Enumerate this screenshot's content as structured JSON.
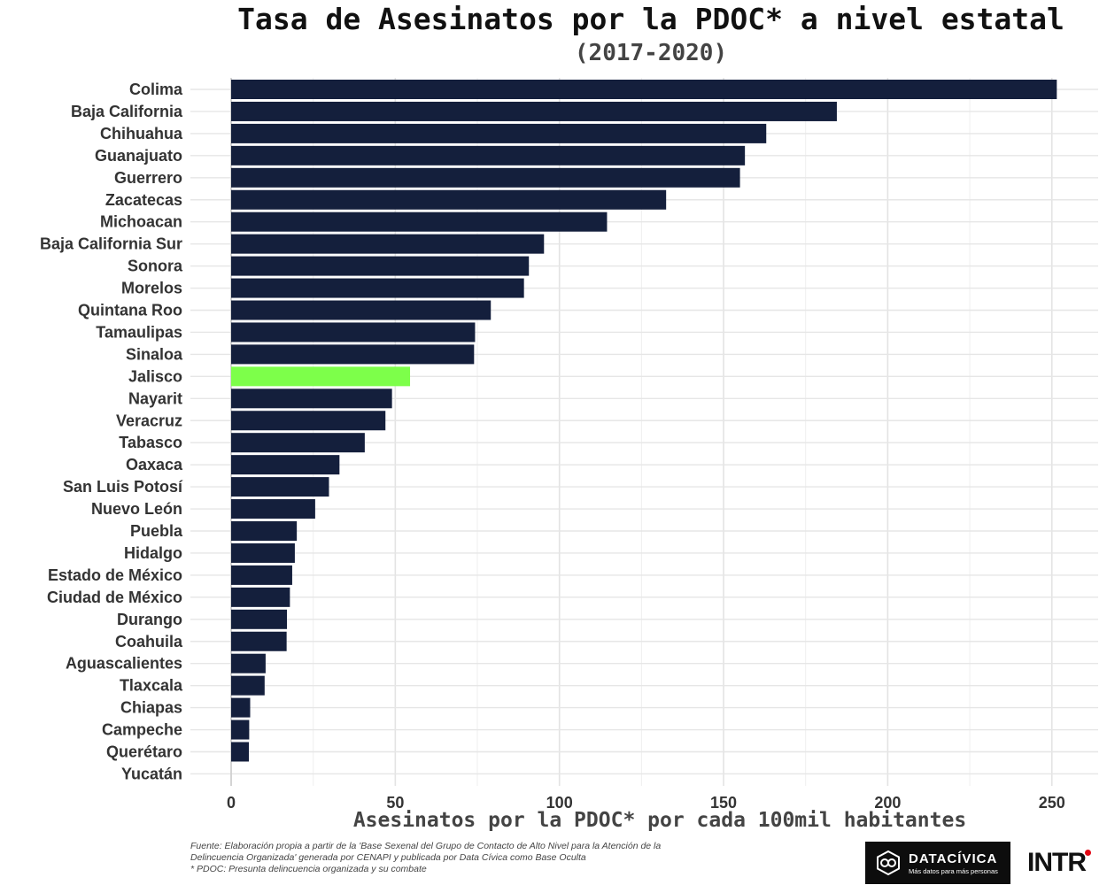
{
  "chart_data": {
    "type": "bar",
    "orientation": "horizontal",
    "title": "Tasa de Asesinatos por la PDOC* a nivel estatal",
    "subtitle": "(2017-2020)",
    "xlabel": "Asesinatos por la PDOC* por cada 100mil habitantes",
    "ylabel": "",
    "xlim": [
      0,
      260
    ],
    "xticks": [
      0,
      50,
      100,
      150,
      200,
      250
    ],
    "grid": true,
    "bar_color": "#141f3c",
    "highlight_color": "#7dff4a",
    "highlight_category": "Jalisco",
    "categories": [
      "Colima",
      "Baja California",
      "Chihuahua",
      "Guanajuato",
      "Guerrero",
      "Zacatecas",
      "Michoacan",
      "Baja California Sur",
      "Sonora",
      "Morelos",
      "Quintana Roo",
      "Tamaulipas",
      "Sinaloa",
      "Jalisco",
      "Nayarit",
      "Veracruz",
      "Tabasco",
      "Oaxaca",
      "San Luis Potosí",
      "Nuevo León",
      "Puebla",
      "Hidalgo",
      "Estado de México",
      "Ciudad de México",
      "Durango",
      "Coahuila",
      "Aguascalientes",
      "Tlaxcala",
      "Chiapas",
      "Campeche",
      "Querétaro",
      "Yucatán"
    ],
    "values": [
      251.5,
      184.5,
      163,
      156.5,
      155,
      132.5,
      114.5,
      95.3,
      90.7,
      89.2,
      79.1,
      74.3,
      74,
      54.5,
      49,
      47,
      40.7,
      33,
      29.8,
      25.6,
      20,
      19.4,
      18.6,
      17.9,
      17,
      16.9,
      10.5,
      10.2,
      5.8,
      5.5,
      5.4,
      0
    ]
  },
  "footer": {
    "source_lines": [
      "Fuente: Elaboración propia a partir de la 'Base Sexenal del Grupo de Contacto de Alto Nivel para la Atención de la",
      "Delincuencia Organizada' generada por CENAPI y publicada por Data Cívica como Base Oculta",
      "* PDOC: Presunta delincuencia organizada y su combate"
    ],
    "logo_datacivica_name": "DATACÍVICA",
    "logo_datacivica_tagline": "Más datos para más personas",
    "logo_intr": "INTR"
  }
}
